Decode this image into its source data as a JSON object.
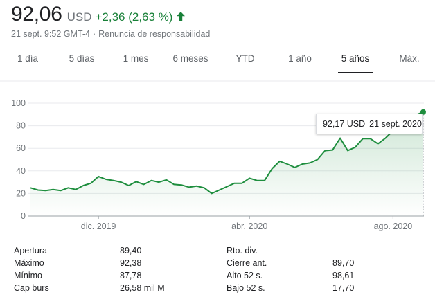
{
  "quote": {
    "price": "92,06",
    "currency": "USD",
    "change": "+2,36 (2,63 %)",
    "timestamp": "21 sept. 9:52 GMT-4",
    "separator": "·",
    "disclaimer": "Renuncia de responsabilidad"
  },
  "tabs": [
    {
      "label": "1 día",
      "active": false
    },
    {
      "label": "5 días",
      "active": false
    },
    {
      "label": "1 mes",
      "active": false
    },
    {
      "label": "6 meses",
      "active": false
    },
    {
      "label": "YTD",
      "active": false
    },
    {
      "label": "1 año",
      "active": false
    },
    {
      "label": "5 años",
      "active": true
    },
    {
      "label": "Máx.",
      "active": false
    }
  ],
  "tooltip": {
    "price": "92,17 USD",
    "date": "21 sept. 2020"
  },
  "colors": {
    "up": "#188038",
    "line": "#1e8e3e",
    "fill": "#e6f4ea"
  },
  "chart_data": {
    "type": "area",
    "x_tick_labels": [
      "dic. 2019",
      "abr. 2020",
      "ago. 2020"
    ],
    "y_ticks": [
      0,
      20,
      40,
      60,
      80,
      100
    ],
    "ylim": [
      0,
      100
    ],
    "grid": true,
    "series": [
      {
        "values": [
          25,
          23,
          22.5,
          23.5,
          22.5,
          25,
          23.5,
          27,
          29,
          35,
          32.5,
          31.5,
          30,
          27,
          30.5,
          28,
          31.5,
          30,
          32,
          28,
          27.5,
          25.5,
          26.5,
          25,
          20,
          23,
          26,
          29,
          29,
          33.5,
          31.5,
          31.5,
          42,
          48.5,
          46,
          43,
          46,
          47,
          50,
          58,
          58.5,
          69,
          58,
          61,
          68.5,
          68.5,
          64,
          69,
          75.5,
          80,
          83.5,
          89.5,
          92.17
        ]
      }
    ]
  },
  "stats": {
    "left": [
      {
        "label": "Apertura",
        "value": "89,40"
      },
      {
        "label": "Máximo",
        "value": "92,38"
      },
      {
        "label": "Mínimo",
        "value": "87,78"
      },
      {
        "label": "Cap burs",
        "value": "26,58 mil M"
      }
    ],
    "right": [
      {
        "label": "Rto. div.",
        "value": "-"
      },
      {
        "label": "Cierre ant.",
        "value": "89,70"
      },
      {
        "label": "Alto 52 s.",
        "value": "98,61"
      },
      {
        "label": "Bajo 52 s.",
        "value": "17,70"
      }
    ]
  }
}
